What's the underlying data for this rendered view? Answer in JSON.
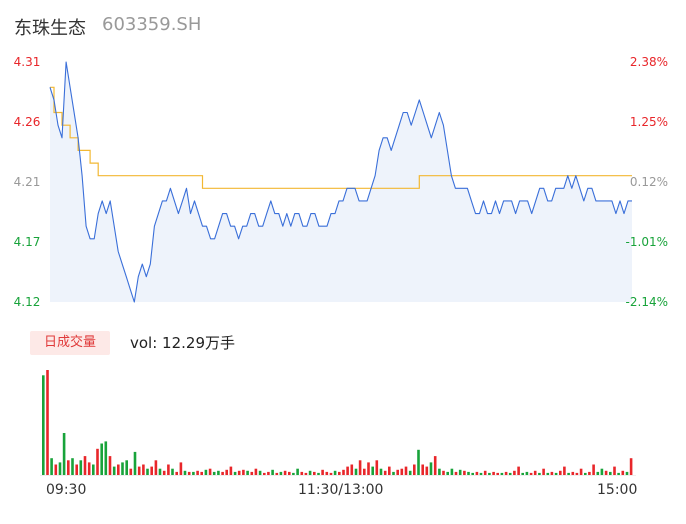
{
  "header": {
    "stock_name": "东珠生态",
    "stock_code": "603359.SH"
  },
  "chart_data": {
    "type": "line",
    "price_axis": {
      "ticks": [
        "4.31",
        "4.26",
        "4.21",
        "4.17",
        "4.12"
      ],
      "min": 4.12,
      "max": 4.31,
      "prev_close": 4.21
    },
    "pct_axis": {
      "ticks": [
        "2.38%",
        "1.25%",
        "0.12%",
        "-1.01%",
        "-2.14%"
      ]
    },
    "colors": {
      "up": "#e8262a",
      "flat": "#999999",
      "down": "#18a33a",
      "price_line": "#3a6fd9",
      "avg_line": "#f2b833",
      "area": "#eef3fb"
    },
    "series": [
      {
        "values": [
          4.29,
          4.28,
          4.26,
          4.25,
          4.31,
          4.29,
          4.27,
          4.25,
          4.22,
          4.18,
          4.17,
          4.17,
          4.19,
          4.2,
          4.19,
          4.2,
          4.18,
          4.16,
          4.15,
          4.14,
          4.13,
          4.12,
          4.14,
          4.15,
          4.14,
          4.15,
          4.18,
          4.19,
          4.2,
          4.2,
          4.21,
          4.2,
          4.19,
          4.2,
          4.21,
          4.19,
          4.2,
          4.19,
          4.18,
          4.18,
          4.17,
          4.17,
          4.18,
          4.19,
          4.19,
          4.18,
          4.18,
          4.17,
          4.18,
          4.18,
          4.19,
          4.19,
          4.18,
          4.18,
          4.19,
          4.2,
          4.19,
          4.19,
          4.18,
          4.19,
          4.18,
          4.19,
          4.19,
          4.18,
          4.18,
          4.19,
          4.19,
          4.18,
          4.18,
          4.18,
          4.19,
          4.19,
          4.2,
          4.2,
          4.21,
          4.21,
          4.21,
          4.2,
          4.2,
          4.2,
          4.21,
          4.22,
          4.24,
          4.25,
          4.25,
          4.24,
          4.25,
          4.26,
          4.27,
          4.27,
          4.26,
          4.27,
          4.28,
          4.27,
          4.26,
          4.25,
          4.26,
          4.27,
          4.26,
          4.24,
          4.22,
          4.21,
          4.21,
          4.21,
          4.21,
          4.2,
          4.19,
          4.19,
          4.2,
          4.19,
          4.19,
          4.2,
          4.19,
          4.2,
          4.2,
          4.2,
          4.19,
          4.2,
          4.2,
          4.2,
          4.19,
          4.2,
          4.21,
          4.21,
          4.2,
          4.2,
          4.21,
          4.21,
          4.21,
          4.22,
          4.21,
          4.22,
          4.21,
          4.2,
          4.21,
          4.21,
          4.2,
          4.2,
          4.2,
          4.2,
          4.2,
          4.19,
          4.2,
          4.19,
          4.2,
          4.2
        ]
      },
      {
        "values": [
          4.29,
          4.27,
          4.27,
          4.26,
          4.26,
          4.25,
          4.25,
          4.24,
          4.24,
          4.24,
          4.23,
          4.23,
          4.22,
          4.22,
          4.22,
          4.22,
          4.22,
          4.22,
          4.22,
          4.22,
          4.22,
          4.22,
          4.22,
          4.22,
          4.22,
          4.22,
          4.22,
          4.22,
          4.22,
          4.22,
          4.22,
          4.22,
          4.22,
          4.22,
          4.22,
          4.22,
          4.22,
          4.22,
          4.21,
          4.21,
          4.21,
          4.21,
          4.21,
          4.21,
          4.21,
          4.21,
          4.21,
          4.21,
          4.21,
          4.21,
          4.21,
          4.21,
          4.21,
          4.21,
          4.21,
          4.21,
          4.21,
          4.21,
          4.21,
          4.21,
          4.21,
          4.21,
          4.21,
          4.21,
          4.21,
          4.21,
          4.21,
          4.21,
          4.21,
          4.21,
          4.21,
          4.21,
          4.21,
          4.21,
          4.21,
          4.21,
          4.21,
          4.21,
          4.21,
          4.21,
          4.21,
          4.21,
          4.21,
          4.21,
          4.21,
          4.21,
          4.21,
          4.21,
          4.21,
          4.21,
          4.21,
          4.21,
          4.22,
          4.22,
          4.22,
          4.22,
          4.22,
          4.22,
          4.22,
          4.22,
          4.22,
          4.22,
          4.22,
          4.22,
          4.22,
          4.22,
          4.22,
          4.22,
          4.22,
          4.22,
          4.22,
          4.22,
          4.22,
          4.22,
          4.22,
          4.22,
          4.22,
          4.22,
          4.22,
          4.22,
          4.22,
          4.22,
          4.22,
          4.22,
          4.22,
          4.22,
          4.22,
          4.22,
          4.22,
          4.22,
          4.22,
          4.22,
          4.22,
          4.22,
          4.22,
          4.22,
          4.22,
          4.22,
          4.22,
          4.22,
          4.22,
          4.22,
          4.22,
          4.22,
          4.22,
          4.22
        ]
      }
    ],
    "volume": {
      "tab_label": "日成交量",
      "summary": "vol: 12.29万手",
      "bars": [
        {
          "v": 95,
          "d": "down"
        },
        {
          "v": 100,
          "d": "up"
        },
        {
          "v": 16,
          "d": "down"
        },
        {
          "v": 10,
          "d": "up"
        },
        {
          "v": 12,
          "d": "down"
        },
        {
          "v": 40,
          "d": "down"
        },
        {
          "v": 14,
          "d": "up"
        },
        {
          "v": 16,
          "d": "down"
        },
        {
          "v": 10,
          "d": "up"
        },
        {
          "v": 14,
          "d": "down"
        },
        {
          "v": 18,
          "d": "up"
        },
        {
          "v": 12,
          "d": "up"
        },
        {
          "v": 10,
          "d": "down"
        },
        {
          "v": 25,
          "d": "up"
        },
        {
          "v": 30,
          "d": "down"
        },
        {
          "v": 32,
          "d": "down"
        },
        {
          "v": 18,
          "d": "up"
        },
        {
          "v": 8,
          "d": "down"
        },
        {
          "v": 10,
          "d": "up"
        },
        {
          "v": 12,
          "d": "down"
        },
        {
          "v": 14,
          "d": "down"
        },
        {
          "v": 6,
          "d": "up"
        },
        {
          "v": 22,
          "d": "down"
        },
        {
          "v": 8,
          "d": "up"
        },
        {
          "v": 10,
          "d": "up"
        },
        {
          "v": 6,
          "d": "down"
        },
        {
          "v": 8,
          "d": "up"
        },
        {
          "v": 14,
          "d": "up"
        },
        {
          "v": 6,
          "d": "down"
        },
        {
          "v": 4,
          "d": "up"
        },
        {
          "v": 10,
          "d": "up"
        },
        {
          "v": 6,
          "d": "down"
        },
        {
          "v": 3,
          "d": "up"
        },
        {
          "v": 12,
          "d": "up"
        },
        {
          "v": 4,
          "d": "down"
        },
        {
          "v": 3,
          "d": "up"
        },
        {
          "v": 3,
          "d": "down"
        },
        {
          "v": 4,
          "d": "up"
        },
        {
          "v": 3,
          "d": "up"
        },
        {
          "v": 5,
          "d": "down"
        },
        {
          "v": 6,
          "d": "up"
        },
        {
          "v": 3,
          "d": "down"
        },
        {
          "v": 4,
          "d": "down"
        },
        {
          "v": 3,
          "d": "up"
        },
        {
          "v": 5,
          "d": "up"
        },
        {
          "v": 8,
          "d": "up"
        },
        {
          "v": 3,
          "d": "down"
        },
        {
          "v": 4,
          "d": "up"
        },
        {
          "v": 5,
          "d": "up"
        },
        {
          "v": 4,
          "d": "down"
        },
        {
          "v": 3,
          "d": "up"
        },
        {
          "v": 6,
          "d": "up"
        },
        {
          "v": 4,
          "d": "down"
        },
        {
          "v": 2,
          "d": "up"
        },
        {
          "v": 3,
          "d": "up"
        },
        {
          "v": 5,
          "d": "down"
        },
        {
          "v": 2,
          "d": "up"
        },
        {
          "v": 3,
          "d": "down"
        },
        {
          "v": 4,
          "d": "up"
        },
        {
          "v": 3,
          "d": "up"
        },
        {
          "v": 2,
          "d": "down"
        },
        {
          "v": 6,
          "d": "down"
        },
        {
          "v": 3,
          "d": "up"
        },
        {
          "v": 2,
          "d": "up"
        },
        {
          "v": 4,
          "d": "down"
        },
        {
          "v": 3,
          "d": "up"
        },
        {
          "v": 2,
          "d": "down"
        },
        {
          "v": 5,
          "d": "up"
        },
        {
          "v": 3,
          "d": "up"
        },
        {
          "v": 2,
          "d": "up"
        },
        {
          "v": 4,
          "d": "down"
        },
        {
          "v": 3,
          "d": "up"
        },
        {
          "v": 5,
          "d": "up"
        },
        {
          "v": 8,
          "d": "up"
        },
        {
          "v": 10,
          "d": "up"
        },
        {
          "v": 6,
          "d": "down"
        },
        {
          "v": 14,
          "d": "up"
        },
        {
          "v": 6,
          "d": "up"
        },
        {
          "v": 12,
          "d": "up"
        },
        {
          "v": 8,
          "d": "down"
        },
        {
          "v": 14,
          "d": "up"
        },
        {
          "v": 6,
          "d": "down"
        },
        {
          "v": 4,
          "d": "up"
        },
        {
          "v": 8,
          "d": "up"
        },
        {
          "v": 3,
          "d": "down"
        },
        {
          "v": 5,
          "d": "up"
        },
        {
          "v": 6,
          "d": "up"
        },
        {
          "v": 8,
          "d": "up"
        },
        {
          "v": 4,
          "d": "down"
        },
        {
          "v": 10,
          "d": "up"
        },
        {
          "v": 24,
          "d": "down"
        },
        {
          "v": 10,
          "d": "up"
        },
        {
          "v": 8,
          "d": "up"
        },
        {
          "v": 12,
          "d": "down"
        },
        {
          "v": 18,
          "d": "up"
        },
        {
          "v": 6,
          "d": "down"
        },
        {
          "v": 4,
          "d": "up"
        },
        {
          "v": 3,
          "d": "down"
        },
        {
          "v": 6,
          "d": "down"
        },
        {
          "v": 3,
          "d": "up"
        },
        {
          "v": 5,
          "d": "down"
        },
        {
          "v": 4,
          "d": "up"
        },
        {
          "v": 3,
          "d": "down"
        },
        {
          "v": 2,
          "d": "down"
        },
        {
          "v": 3,
          "d": "up"
        },
        {
          "v": 2,
          "d": "down"
        },
        {
          "v": 4,
          "d": "up"
        },
        {
          "v": 2,
          "d": "down"
        },
        {
          "v": 3,
          "d": "up"
        },
        {
          "v": 2,
          "d": "up"
        },
        {
          "v": 2,
          "d": "down"
        },
        {
          "v": 3,
          "d": "up"
        },
        {
          "v": 2,
          "d": "down"
        },
        {
          "v": 4,
          "d": "up"
        },
        {
          "v": 8,
          "d": "up"
        },
        {
          "v": 2,
          "d": "down"
        },
        {
          "v": 3,
          "d": "down"
        },
        {
          "v": 2,
          "d": "up"
        },
        {
          "v": 4,
          "d": "up"
        },
        {
          "v": 2,
          "d": "down"
        },
        {
          "v": 6,
          "d": "up"
        },
        {
          "v": 2,
          "d": "down"
        },
        {
          "v": 3,
          "d": "up"
        },
        {
          "v": 2,
          "d": "down"
        },
        {
          "v": 4,
          "d": "up"
        },
        {
          "v": 8,
          "d": "up"
        },
        {
          "v": 2,
          "d": "down"
        },
        {
          "v": 3,
          "d": "up"
        },
        {
          "v": 2,
          "d": "up"
        },
        {
          "v": 6,
          "d": "up"
        },
        {
          "v": 2,
          "d": "down"
        },
        {
          "v": 3,
          "d": "up"
        },
        {
          "v": 10,
          "d": "up"
        },
        {
          "v": 3,
          "d": "down"
        },
        {
          "v": 6,
          "d": "down"
        },
        {
          "v": 4,
          "d": "up"
        },
        {
          "v": 3,
          "d": "down"
        },
        {
          "v": 8,
          "d": "up"
        },
        {
          "v": 2,
          "d": "down"
        },
        {
          "v": 4,
          "d": "up"
        },
        {
          "v": 3,
          "d": "down"
        },
        {
          "v": 16,
          "d": "up"
        }
      ]
    },
    "time_axis": [
      "09:30",
      "11:30/13:00",
      "15:00"
    ]
  }
}
